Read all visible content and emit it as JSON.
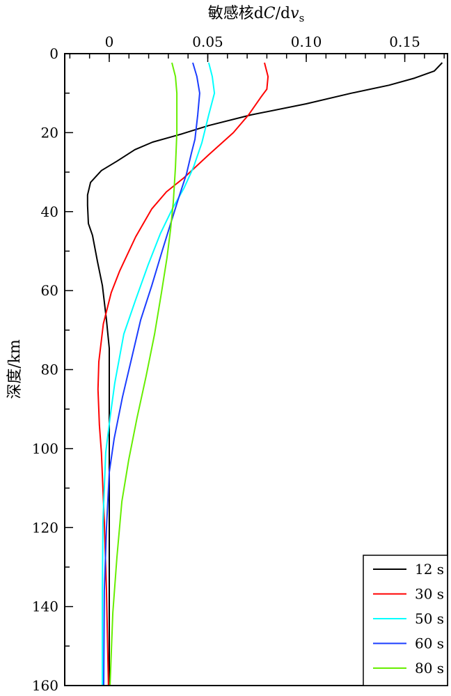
{
  "chart_data": {
    "type": "line",
    "title": "",
    "xlabel_parts": {
      "prefix": "敏感核d",
      "italic1": "C",
      "mid": "/d",
      "italic2": "v",
      "sub": "s"
    },
    "ylabel": "深度/km",
    "xlim": [
      -0.0226,
      0.1717
    ],
    "ylim": [
      0,
      160
    ],
    "y_inverted": true,
    "x_axis_position": "top",
    "x_ticks": [
      0,
      0.05,
      0.1,
      0.15
    ],
    "x_tick_labels": [
      "0",
      "0.05",
      "0.10",
      "0.15"
    ],
    "y_ticks": [
      0,
      20,
      40,
      60,
      80,
      100,
      120,
      140,
      160
    ],
    "y_tick_labels": [
      "0",
      "20",
      "40",
      "60",
      "80",
      "100",
      "120",
      "140",
      "160"
    ],
    "grid": false,
    "legend_position": "bottom-right",
    "series": [
      {
        "name": "12 s",
        "color": "#000000",
        "x": [
          0.169,
          0.165,
          0.155,
          0.142,
          0.123,
          0.1,
          0.072,
          0.0505,
          0.037,
          0.022,
          0.013,
          0.004,
          -0.004,
          -0.0095,
          -0.011,
          -0.011,
          -0.0106,
          -0.0085,
          -0.006,
          -0.0035,
          -0.0014,
          0,
          0,
          0
        ],
        "y": [
          2.3,
          4.4,
          6.2,
          8,
          10,
          12.7,
          15.5,
          18.2,
          20.3,
          22.4,
          24.3,
          27.2,
          29.6,
          32.6,
          35.8,
          38.4,
          43,
          46,
          52.6,
          58.7,
          67.5,
          74.6,
          120,
          160
        ]
      },
      {
        "name": "30 s",
        "color": "#ff0000",
        "x": [
          0.0788,
          0.0806,
          0.08,
          0.077,
          0.0707,
          0.063,
          0.0505,
          0.038,
          0.029,
          0.0216,
          0.0134,
          0.0053,
          0.001,
          -0.003,
          -0.0053,
          -0.0057,
          -0.005,
          -0.004,
          -0.0025,
          -0.0014,
          -0.0004
        ],
        "y": [
          2.3,
          5.8,
          9,
          11,
          15.5,
          20,
          25.6,
          31.4,
          35,
          39.3,
          46.4,
          55,
          60.5,
          68.4,
          78,
          85,
          94,
          101,
          118.7,
          136,
          160
        ]
      },
      {
        "name": "50 s",
        "color": "#00ffff",
        "x": [
          0.0505,
          0.0523,
          0.0534,
          0.0505,
          0.047,
          0.0428,
          0.038,
          0.032,
          0.026,
          0.0198,
          0.0134,
          0.0074,
          0.0028,
          0.0004,
          -0.0018,
          -0.0032,
          -0.0035,
          -0.0035
        ],
        "y": [
          2.3,
          5.8,
          10,
          15.5,
          22.6,
          28.7,
          34,
          39.3,
          45.5,
          53.4,
          62.3,
          71,
          83.4,
          92.2,
          101,
          118.7,
          136,
          160
        ]
      },
      {
        "name": "60 s",
        "color": "#1a3cff",
        "x": [
          0.0424,
          0.0445,
          0.0459,
          0.0449,
          0.0435,
          0.0417,
          0.0392,
          0.0357,
          0.0318,
          0.0269,
          0.0216,
          0.0159,
          0.0117,
          0.0067,
          0.0025,
          0,
          -0.0014,
          -0.0025,
          -0.0028
        ],
        "y": [
          2.3,
          5.8,
          10,
          15.5,
          21.7,
          25.2,
          30.5,
          35.8,
          42,
          49.9,
          58.7,
          67.5,
          76.4,
          87,
          97.5,
          106,
          120,
          136,
          160
        ]
      },
      {
        "name": "80 s",
        "color": "#66ee00",
        "x": [
          0.0318,
          0.0336,
          0.0343,
          0.0343,
          0.0336,
          0.0325,
          0.0311,
          0.0293,
          0.0265,
          0.023,
          0.0187,
          0.0141,
          0.0099,
          0.0064,
          0.0039,
          0.0018,
          0.0004
        ],
        "y": [
          2.3,
          5.8,
          10,
          20,
          28.7,
          37.6,
          44.6,
          51.7,
          60.5,
          71,
          81.7,
          92.2,
          102.8,
          113.4,
          127.5,
          141.6,
          160
        ]
      }
    ]
  }
}
